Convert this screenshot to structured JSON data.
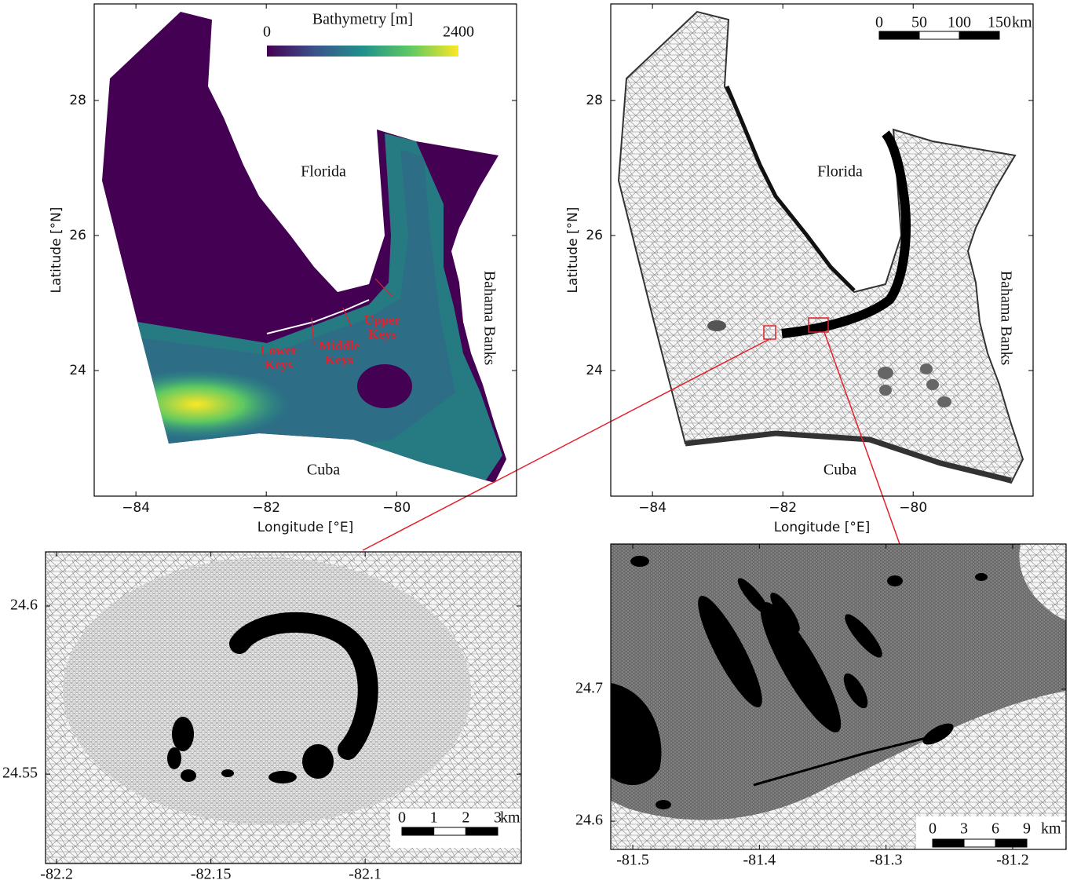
{
  "panels": [
    {
      "xlabel": "Longitude [°E]",
      "ylabel": "Latitude [°N]",
      "xlim": [
        -84.64,
        -78.16
      ],
      "ylim": [
        22.14,
        29.43
      ],
      "xticks": [
        {
          "value": -84,
          "label": "−84"
        },
        {
          "value": -82,
          "label": "−82"
        },
        {
          "value": -80,
          "label": "−80"
        }
      ],
      "yticks": [
        24,
        26,
        28
      ],
      "place_labels": [
        "Florida",
        "Bahama Banks",
        "Cuba"
      ],
      "annotations": [
        {
          "lines": [
            "Lower",
            "Keys"
          ]
        },
        {
          "lines": [
            "Middle",
            "Keys"
          ]
        },
        {
          "lines": [
            "Upper",
            "Keys"
          ]
        }
      ],
      "colorbar": {
        "title": "Bathymetry [m]",
        "range": [
          0,
          2400
        ],
        "ticks": [
          0,
          2400
        ],
        "colors": [
          "#440154",
          "#3b528b",
          "#21918c",
          "#5ec962",
          "#fde725"
        ]
      }
    },
    {
      "xlabel": "Longitude [°E]",
      "ylabel": "Latitude [°N]",
      "xlim": [
        -84.64,
        -78.16
      ],
      "ylim": [
        22.14,
        29.43
      ],
      "xticks": [
        {
          "value": -84,
          "label": "−84"
        },
        {
          "value": -82,
          "label": "−82"
        },
        {
          "value": -80,
          "label": "−80"
        }
      ],
      "yticks": [
        24,
        26,
        28
      ],
      "place_labels": [
        "Florida",
        "Bahama Banks",
        "Cuba"
      ],
      "scale_bar": {
        "ticks": [
          0,
          50,
          100,
          150
        ],
        "unit": "km"
      }
    },
    {
      "xlim": [
        -82.2036,
        -82.0494
      ],
      "ylim": [
        24.5234,
        24.6161
      ],
      "xticks": [
        -82.2,
        -82.15,
        -82.1
      ],
      "yticks": [
        24.55,
        24.6
      ],
      "scale_bar": {
        "ticks": [
          0,
          1,
          2,
          3
        ],
        "unit": "km"
      }
    },
    {
      "xlim": [
        -81.5174,
        -81.1578
      ],
      "ylim": [
        24.5786,
        24.81
      ],
      "xticks": [
        -81.5,
        -81.4,
        -81.3,
        -81.2
      ],
      "yticks": [
        24.6,
        24.7
      ],
      "scale_bar": {
        "ticks": [
          0,
          3,
          6,
          9
        ],
        "unit": "km"
      }
    }
  ]
}
